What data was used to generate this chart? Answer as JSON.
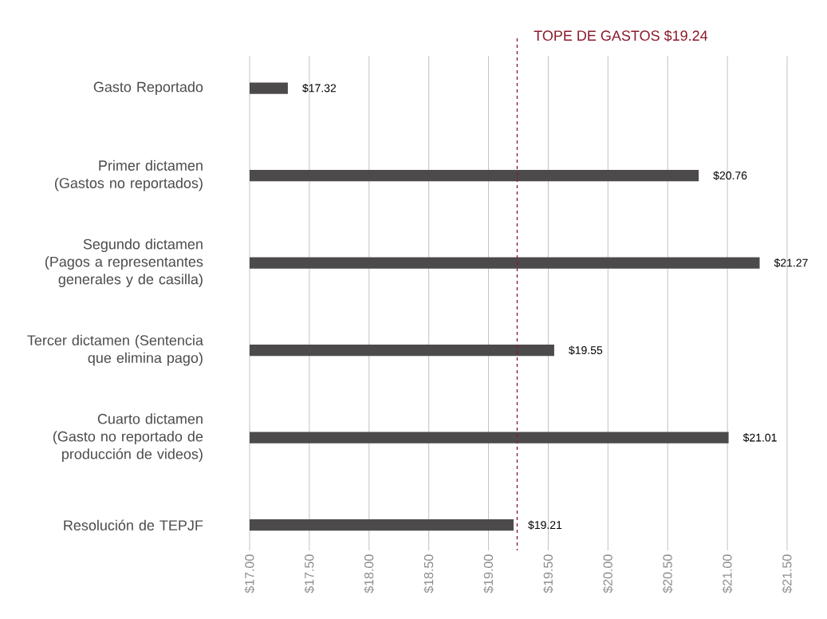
{
  "chart_data": {
    "type": "bar",
    "orientation": "horizontal",
    "categories": [
      "Gasto Reportado",
      "Primer dictamen (Gastos no reportados)",
      "Segundo dictamen (Pagos a representantes generales y de casilla)",
      "Tercer dictamen (Sentencia que elimina pago)",
      "Cuarto dictamen (Gasto no reportado de producción de videos)",
      "Resolución de TEPJF"
    ],
    "values": [
      17.32,
      20.76,
      21.27,
      19.55,
      21.01,
      19.21
    ],
    "value_labels": [
      "$17.32",
      "$20.76",
      "$21.27",
      "$19.55",
      "$21.01",
      "$19.21"
    ],
    "color": "#4d4a4b",
    "xlim": [
      17.0,
      21.5
    ],
    "xticks": [
      {
        "value": 17.0,
        "label": "$17.00"
      },
      {
        "value": 17.5,
        "label": "$17.50"
      },
      {
        "value": 18.0,
        "label": "$18.00"
      },
      {
        "value": 18.5,
        "label": "$18.50"
      },
      {
        "value": 19.0,
        "label": "$19.00"
      },
      {
        "value": 19.5,
        "label": "$19.50"
      },
      {
        "value": 20.0,
        "label": "$20.00"
      },
      {
        "value": 20.5,
        "label": "$20.50"
      },
      {
        "value": 21.0,
        "label": "$21.00"
      },
      {
        "value": 21.5,
        "label": "$21.50"
      }
    ],
    "ref_lines": [
      {
        "axis": "x",
        "value": 19.24,
        "label": "TOPE DE GASTOS $19.24",
        "color": "#8b1a2b",
        "line_style": "dashed"
      }
    ],
    "grid": "x"
  }
}
